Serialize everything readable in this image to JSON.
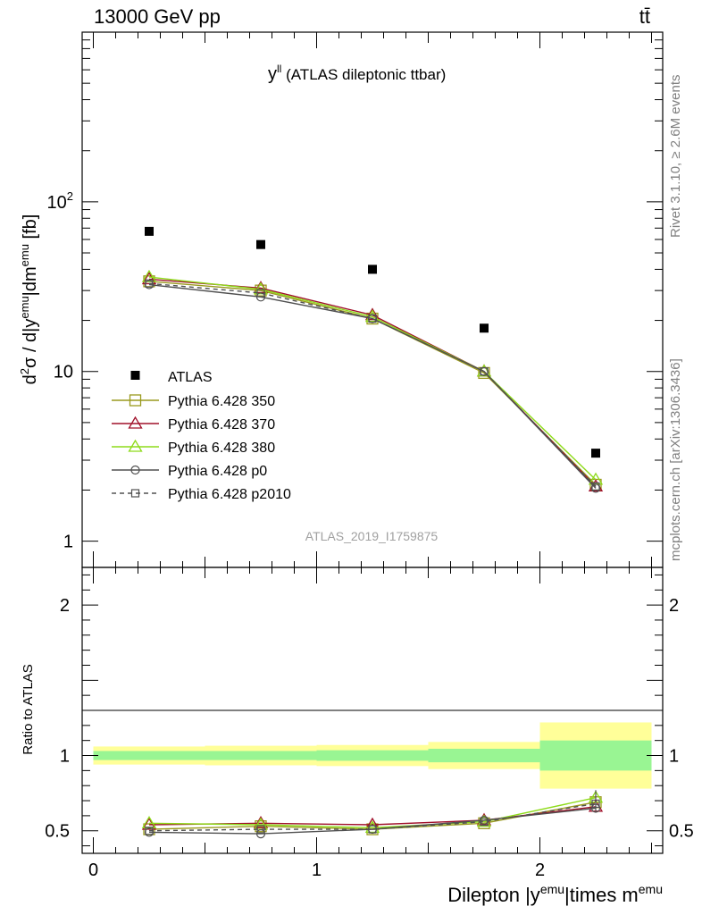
{
  "header": {
    "left": "13000 GeV pp",
    "right": "tt̄"
  },
  "side_labels": {
    "rivet": "Rivet 3.1.10, ≥ 2.6M events",
    "mcplots": "mcplots.cern.ch [arXiv:1306.3436]"
  },
  "chart_data": {
    "type": "scatter",
    "title": "y^ll (ATLAS dileptonic ttbar)",
    "analysis_tag": "ATLAS_2019_I1759875",
    "xlabel": "Dilepton |y^emu|times m^emu",
    "ylabel_main": "d²σ / d|y^emu|dm^emu [fb]",
    "ylabel_ratio": "Ratio to ATLAS",
    "xlim": [
      -0.05,
      2.55
    ],
    "ylim_main": [
      0.7,
      1000
    ],
    "yscale_main": "log",
    "ylim_ratio": [
      0.35,
      2.25
    ],
    "x_ticks": [
      0,
      1,
      2
    ],
    "y_ticks_main": [
      1,
      10,
      100
    ],
    "y_ticks_ratio": [
      0.5,
      1,
      2
    ],
    "bins": [
      [
        0,
        0.5
      ],
      [
        0.5,
        1.0
      ],
      [
        1.0,
        1.5
      ],
      [
        1.5,
        2.0
      ],
      [
        2.0,
        2.5
      ]
    ],
    "x": [
      0.25,
      0.75,
      1.25,
      1.75,
      2.25
    ],
    "data": {
      "name": "ATLAS",
      "values": [
        67,
        56,
        40,
        18,
        3.3
      ],
      "ratio_band_stat": [
        0.03,
        0.03,
        0.035,
        0.045,
        0.1
      ],
      "ratio_band_total": [
        0.06,
        0.065,
        0.07,
        0.09,
        0.22
      ]
    },
    "series": [
      {
        "name": "Pythia 6.428 350",
        "color": "#9a9a1e",
        "marker": "square-open",
        "dashed": false,
        "values": [
          34,
          30,
          20.5,
          9.8,
          2.15
        ],
        "ratio": [
          0.51,
          0.53,
          0.51,
          0.55,
          0.69
        ]
      },
      {
        "name": "Pythia 6.428 370",
        "color": "#a0102a",
        "marker": "triangle-open",
        "dashed": false,
        "values": [
          35,
          31,
          21.5,
          10,
          2.1
        ],
        "ratio": [
          0.54,
          0.55,
          0.54,
          0.57,
          0.66
        ]
      },
      {
        "name": "Pythia 6.428 380",
        "color": "#8edb1a",
        "marker": "triangle-open",
        "dashed": false,
        "values": [
          36,
          30.5,
          21,
          10,
          2.3
        ],
        "ratio": [
          0.55,
          0.54,
          0.52,
          0.56,
          0.72
        ]
      },
      {
        "name": "Pythia 6.428 p0",
        "color": "#505050",
        "marker": "circle-open",
        "dashed": false,
        "values": [
          32.5,
          27.5,
          20.5,
          10,
          2.05
        ],
        "ratio": [
          0.49,
          0.48,
          0.51,
          0.57,
          0.65
        ]
      },
      {
        "name": "Pythia 6.428 p2010",
        "color": "#505050",
        "marker": "square-open-small",
        "dashed": true,
        "values": [
          33,
          29,
          20.5,
          10,
          2.1
        ],
        "ratio": [
          0.5,
          0.51,
          0.51,
          0.56,
          0.68
        ]
      }
    ],
    "legend_position": "center-left",
    "colors": {
      "band_stat": "#99f593",
      "band_total": "#ffff99",
      "data_marker": "#000000"
    }
  }
}
